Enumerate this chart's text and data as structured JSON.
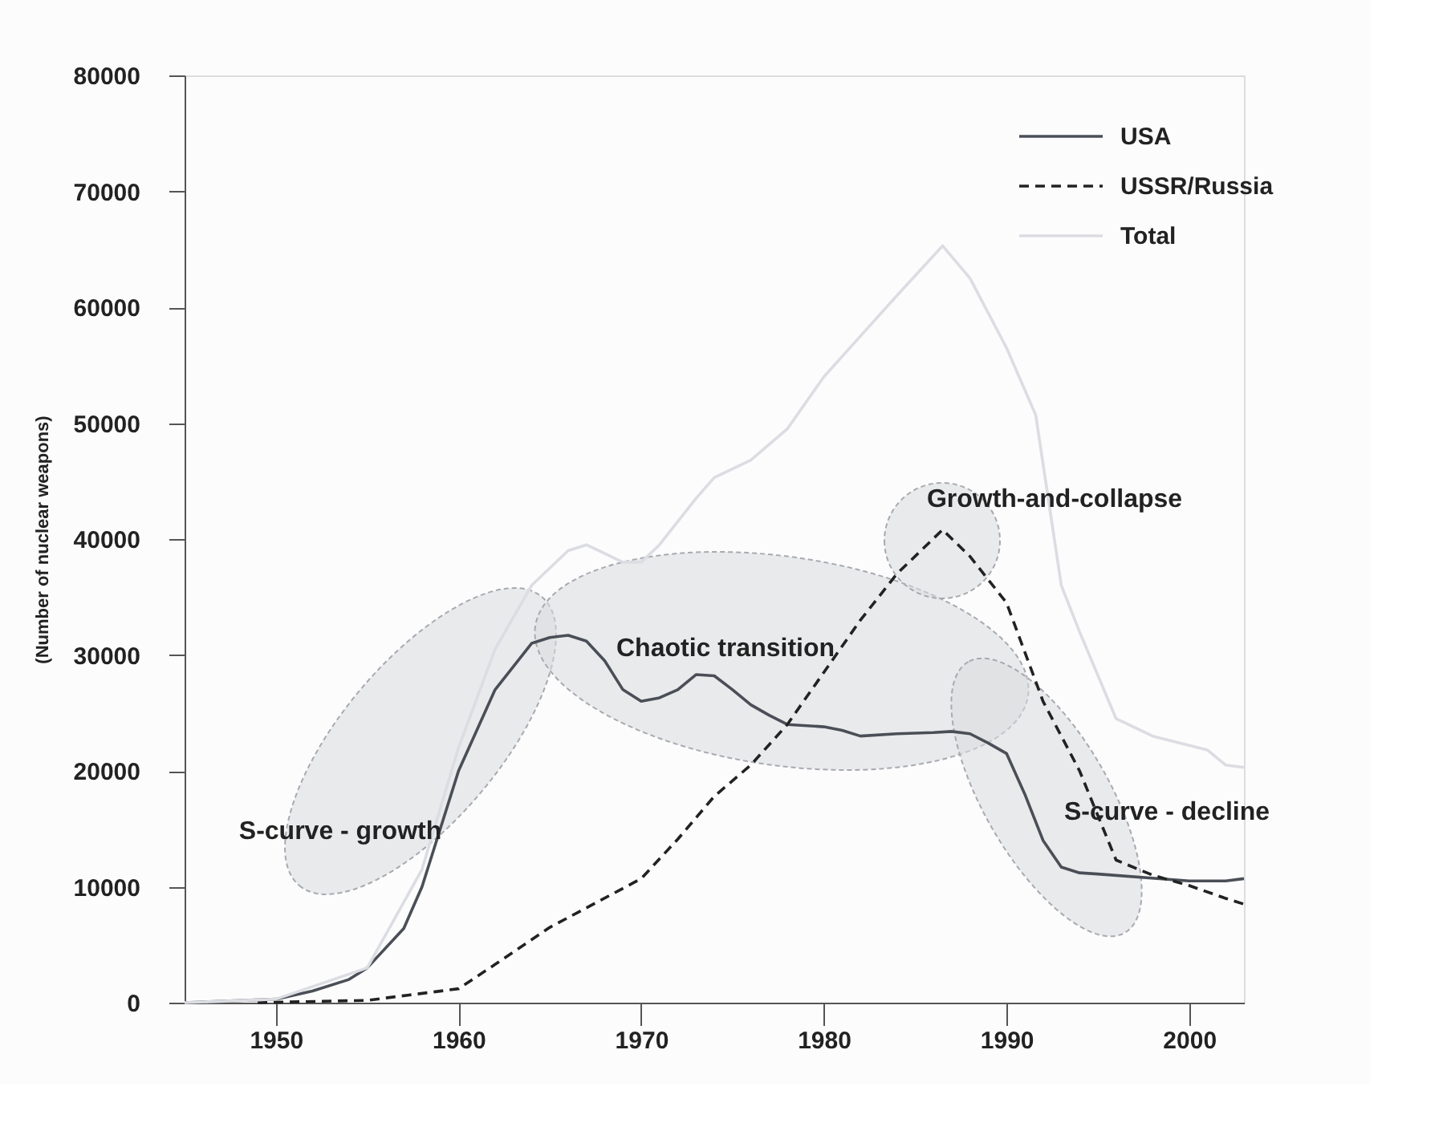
{
  "chart_data": {
    "type": "line",
    "ylabel": "(Number of nuclear weapons)",
    "xlim": [
      1945,
      2003
    ],
    "ylim": [
      0,
      80000
    ],
    "xticks": [
      1950,
      1960,
      1970,
      1980,
      1990,
      2000
    ],
    "yticks": [
      0,
      10000,
      20000,
      30000,
      40000,
      50000,
      60000,
      70000,
      80000
    ],
    "grid": false,
    "legend": "top right",
    "marker": "none",
    "series": [
      {
        "name": "USA",
        "color": "#4a4f57",
        "line_style": "solid",
        "x": [
          1945,
          1950,
          1952,
          1954,
          1955,
          1957,
          1958,
          1959,
          1960,
          1962,
          1964,
          1965,
          1966,
          1967,
          1968,
          1969,
          1970,
          1971,
          1972,
          1973,
          1974,
          1975,
          1976,
          1977,
          1978,
          1980,
          1981,
          1982,
          1984,
          1986,
          1987,
          1988,
          1989,
          1990,
          1991,
          1992,
          1993,
          1994,
          1995,
          2000,
          2002,
          2003
        ],
        "values": [
          0,
          300,
          1000,
          2000,
          3000,
          6400,
          10000,
          15000,
          20000,
          27000,
          31000,
          31500,
          31700,
          31200,
          29500,
          27000,
          26000,
          26300,
          27000,
          28300,
          28200,
          27000,
          25700,
          24800,
          24000,
          23800,
          23500,
          23000,
          23200,
          23300,
          23400,
          23200,
          22400,
          21500,
          18000,
          14000,
          11700,
          11200,
          11100,
          10500,
          10500,
          10700
        ]
      },
      {
        "name": "USSR/Russia",
        "color": "#222222",
        "line_style": "dashed",
        "x": [
          1949,
          1955,
          1960,
          1962,
          1965,
          1970,
          1972,
          1974,
          1976,
          1978,
          1980,
          1982,
          1984,
          1986.5,
          1988,
          1990,
          1992,
          1994,
          1996,
          1998,
          2000,
          2002,
          2003
        ],
        "values": [
          0,
          200,
          1200,
          3300,
          6500,
          10700,
          14100,
          17800,
          20500,
          24000,
          28500,
          33000,
          37000,
          40800,
          38500,
          34500,
          26000,
          20000,
          12300,
          11000,
          10100,
          9000,
          8500
        ]
      },
      {
        "name": "Total",
        "color": "#dcdde2",
        "line_style": "solid",
        "x": [
          1945,
          1950,
          1955,
          1958,
          1960,
          1962,
          1964,
          1966,
          1967,
          1969,
          1970,
          1971,
          1973,
          1974,
          1976,
          1978,
          1980,
          1982,
          1984,
          1986.5,
          1988,
          1989,
          1990,
          1991.6,
          1993,
          1994,
          1996,
          1998,
          2000,
          2001,
          2002,
          2003
        ],
        "values": [
          0,
          300,
          3000,
          11500,
          22000,
          30500,
          36000,
          39000,
          39500,
          38000,
          38000,
          39500,
          43500,
          45300,
          46800,
          49500,
          54000,
          57500,
          61000,
          65300,
          62500,
          59500,
          56500,
          50700,
          36000,
          32000,
          24500,
          23000,
          22200,
          21800,
          20500,
          20300
        ]
      }
    ],
    "annotations": [
      "S-curve - growth",
      "Chaotic transition",
      "Growth-and-collapse",
      "S-curve - decline"
    ]
  }
}
